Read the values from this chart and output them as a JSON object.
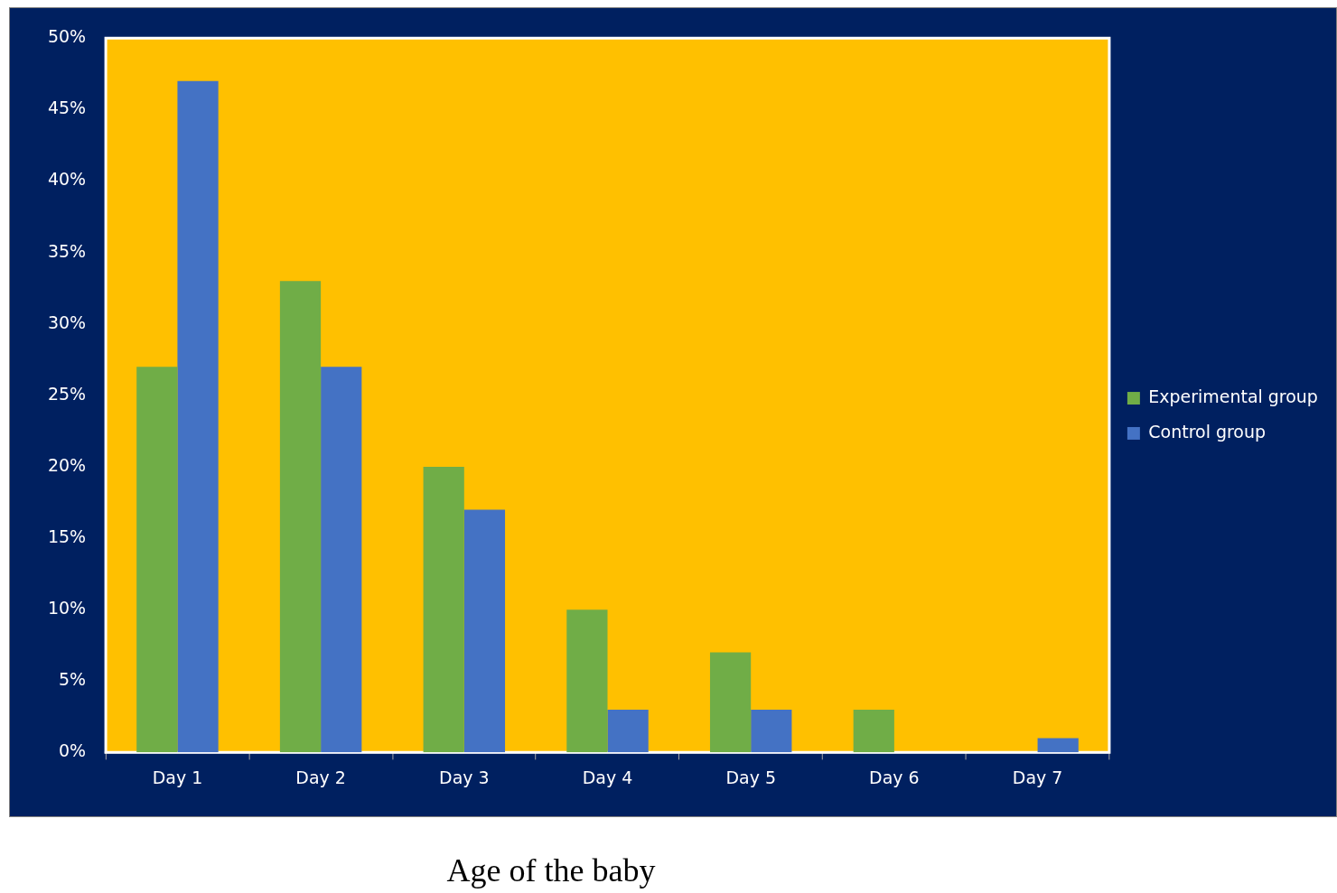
{
  "chart_data": {
    "type": "bar",
    "xlabel": "Age of the baby",
    "categories": [
      "Day 1",
      "Day 2",
      "Day 3",
      "Day 4",
      "Day 5",
      "Day 6",
      "Day 7"
    ],
    "series": [
      {
        "name": "Experimental group",
        "color": "#70ad47",
        "values": [
          27,
          33,
          20,
          10,
          7,
          3,
          0
        ]
      },
      {
        "name": "Control group",
        "color": "#4472c4",
        "values": [
          47,
          27,
          17,
          3,
          3,
          0,
          1
        ]
      }
    ],
    "ylim": [
      0,
      50
    ],
    "yticks": [
      {
        "value": 0,
        "label": "0%"
      },
      {
        "value": 5,
        "label": "5%"
      },
      {
        "value": 10,
        "label": "10%"
      },
      {
        "value": 15,
        "label": "15%"
      },
      {
        "value": 20,
        "label": "20%"
      },
      {
        "value": 25,
        "label": "25%"
      },
      {
        "value": 30,
        "label": "30%"
      },
      {
        "value": 35,
        "label": "35%"
      },
      {
        "value": 40,
        "label": "40%"
      },
      {
        "value": 45,
        "label": "45%"
      },
      {
        "value": 50,
        "label": "50%"
      }
    ],
    "grid": false,
    "legend": "right"
  }
}
